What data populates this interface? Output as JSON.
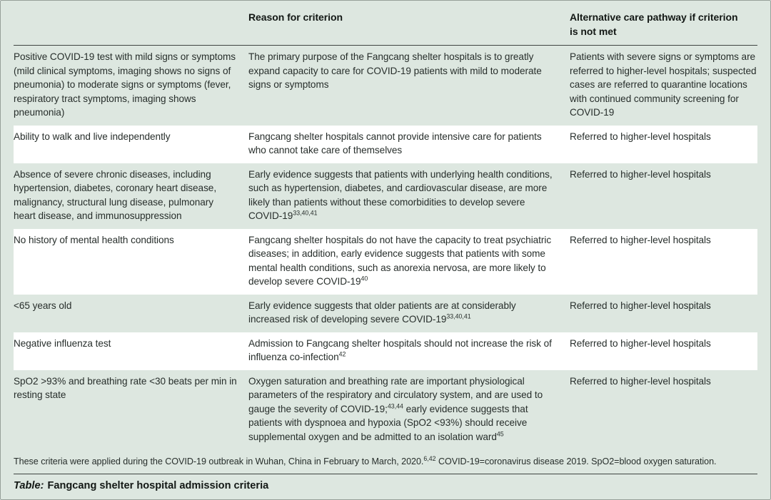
{
  "page": {
    "background_color": "#dde7e0",
    "stripe_color": "#ffffff",
    "rule_color": "#3f4542",
    "text_color": "#272e2b",
    "border_color": "#96a09a"
  },
  "table": {
    "headers": {
      "criterion": "",
      "reason": "Reason for criterion",
      "alternative": "Alternative care pathway if criterion is not met"
    },
    "rows": [
      {
        "criterion": "Positive COVID-19 test with mild signs or symptoms (mild clinical symptoms, imaging shows no signs of pneumonia) to moderate signs or symptoms (fever, respiratory tract symptoms, imaging shows pneumonia)",
        "reason": [
          {
            "t": "The primary purpose of the Fangcang shelter hospitals is to greatly expand capacity to care for COVID-19 patients with mild to moderate signs or symptoms"
          }
        ],
        "alternative": "Patients with severe signs or symptoms are referred to higher-level hospitals; suspected cases are referred to quarantine locations with continued community screening for COVID-19"
      },
      {
        "criterion": "Ability to walk and live independently",
        "reason": [
          {
            "t": "Fangcang shelter hospitals cannot provide intensive care for patients who cannot take care of themselves"
          }
        ],
        "alternative": "Referred to higher-level hospitals"
      },
      {
        "criterion": "Absence of severe chronic diseases, including hypertension, diabetes, coronary heart disease, malignancy, structural lung disease, pulmonary heart disease, and immunosuppression",
        "reason": [
          {
            "t": "Early evidence suggests that patients with underlying health conditions, such as hypertension, diabetes, and cardiovascular disease, are more likely than patients without these comorbidities to develop severe COVID-19"
          },
          {
            "sup": "33,40,41"
          }
        ],
        "alternative": "Referred to higher-level hospitals"
      },
      {
        "criterion": "No history of mental health conditions",
        "reason": [
          {
            "t": "Fangcang shelter hospitals do not have the capacity to treat psychiatric diseases; in addition, early evidence suggests that patients with some mental health conditions, such as anorexia nervosa, are more likely to develop severe COVID-19"
          },
          {
            "sup": "40"
          }
        ],
        "alternative": "Referred to higher-level hospitals"
      },
      {
        "criterion": "<65 years old",
        "reason": [
          {
            "t": "Early evidence suggests that older patients are at considerably increased risk of developing severe COVID-19"
          },
          {
            "sup": "33,40,41"
          }
        ],
        "alternative": "Referred to higher-level hospitals"
      },
      {
        "criterion": "Negative influenza test",
        "reason": [
          {
            "t": "Admission to Fangcang shelter hospitals should not increase the risk of influenza co-infection"
          },
          {
            "sup": "42"
          }
        ],
        "alternative": "Referred to higher-level hospitals"
      },
      {
        "criterion": "SpO2 >93% and breathing rate <30 beats per min in resting state",
        "reason": [
          {
            "t": "Oxygen saturation and breathing rate are important physiological parameters of the respiratory and circulatory system, and are used to gauge the severity of COVID-19;"
          },
          {
            "sup": "43,44"
          },
          {
            "t": " early evidence suggests that patients with dyspnoea and hypoxia (SpO2 <93%) should receive supplemental oxygen and be admitted to an isolation ward"
          },
          {
            "sup": "45"
          }
        ],
        "alternative": "Referred to higher-level hospitals"
      }
    ],
    "footnote": [
      {
        "t": "These criteria were applied during the COVID-19 outbreak in Wuhan, China in February to March, 2020."
      },
      {
        "sup": "6,42"
      },
      {
        "t": " COVID-19=coronavirus disease 2019. SpO2=blood oxygen saturation."
      }
    ],
    "caption_label": "Table:",
    "caption_text": "Fangcang shelter hospital admission criteria"
  }
}
